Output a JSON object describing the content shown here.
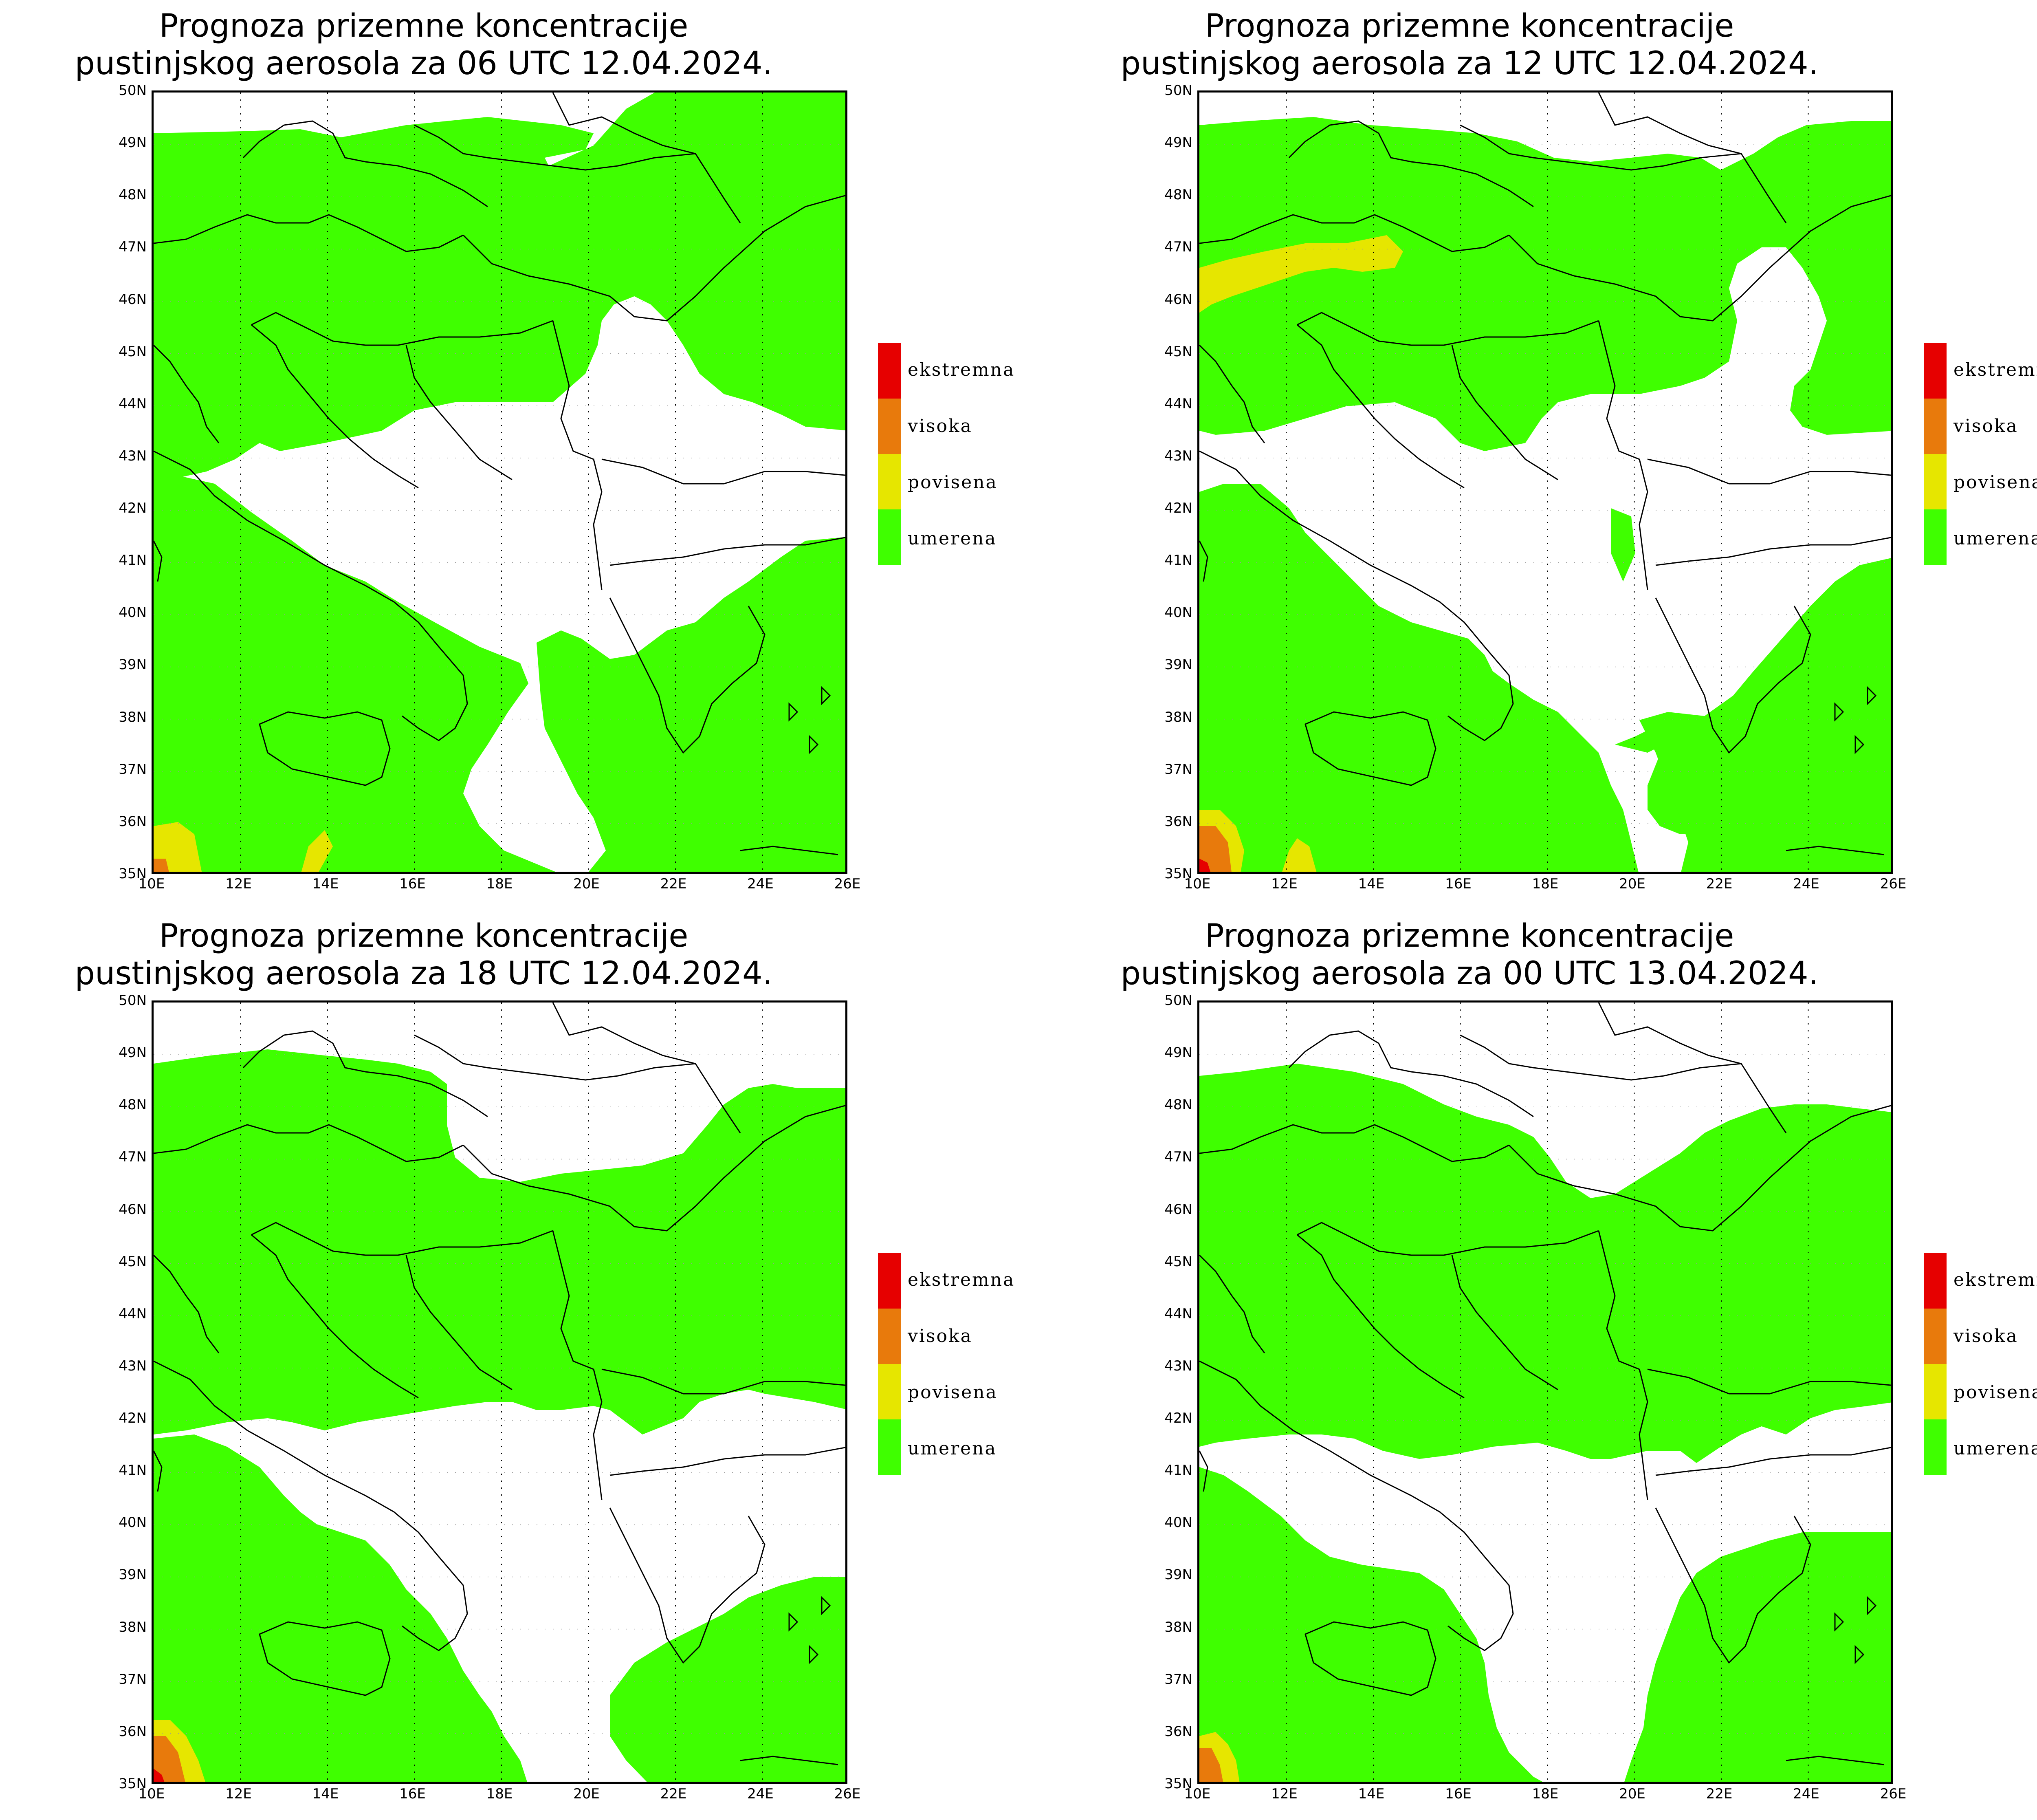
{
  "legend": {
    "items": [
      {
        "label": "ekstremna",
        "color": "#e60000"
      },
      {
        "label": "visoka",
        "color": "#e87a0c"
      },
      {
        "label": "povisena",
        "color": "#e6e600"
      },
      {
        "label": "umerena",
        "color": "#3fff00"
      }
    ]
  },
  "axes": {
    "lat_ticks": [
      "50N",
      "49N",
      "48N",
      "47N",
      "46N",
      "45N",
      "44N",
      "43N",
      "42N",
      "41N",
      "40N",
      "39N",
      "38N",
      "37N",
      "36N",
      "35N"
    ],
    "lon_ticks": [
      "10E",
      "12E",
      "14E",
      "16E",
      "18E",
      "20E",
      "22E",
      "24E",
      "26E"
    ],
    "lon_range": [
      10,
      26
    ],
    "lat_range": [
      35,
      50
    ],
    "grid": "dotted meridians every 2°"
  },
  "panels": [
    {
      "title_line1": "Prognoza prizemne koncentracije",
      "title_line2": "pustinjskog aerosola za 06 UTC 12.04.2024."
    },
    {
      "title_line1": "Prognoza prizemne koncentracije",
      "title_line2": "pustinjskog aerosola za 12 UTC 12.04.2024."
    },
    {
      "title_line1": "Prognoza prizemne koncentracije",
      "title_line2": "pustinjskog aerosola za 18 UTC 12.04.2024."
    },
    {
      "title_line1": "Prognoza prizemne koncentracije",
      "title_line2": "pustinjskog aerosola za 00 UTC 13.04.2024."
    }
  ],
  "colors": {
    "umerena": "#3fff00",
    "povisena": "#e6e600",
    "visoka": "#e87a0c",
    "ekstremna": "#e60000",
    "border": "#000000"
  }
}
